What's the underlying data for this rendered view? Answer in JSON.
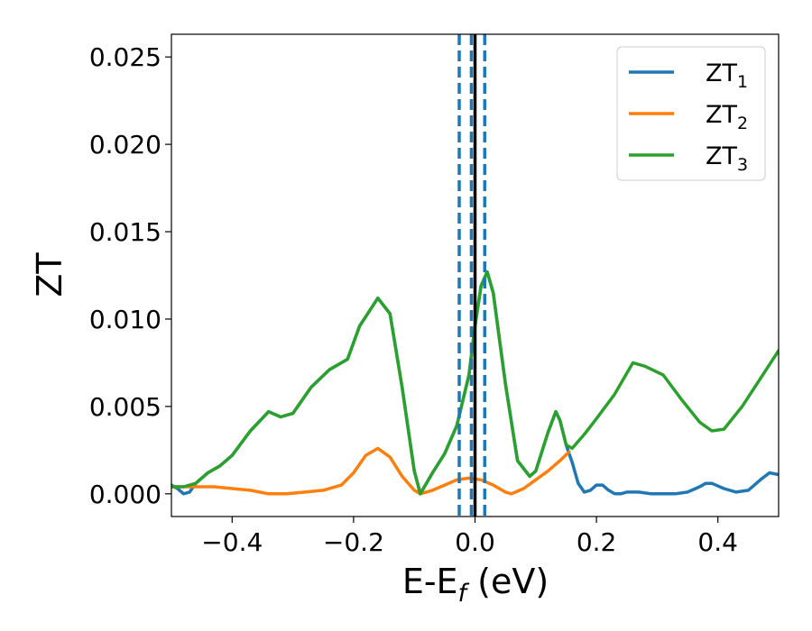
{
  "chart_data": {
    "type": "line",
    "title": "",
    "xlabel": {
      "main": "E-E",
      "sub": "f",
      "unit": " (eV)"
    },
    "ylabel": "ZT",
    "xlim": [
      -0.5,
      0.5
    ],
    "ylim": [
      -0.0013,
      0.0263
    ],
    "xticks": [
      -0.4,
      -0.2,
      0.0,
      0.2,
      0.4
    ],
    "xtick_labels": [
      "−0.4",
      "−0.2",
      "0.0",
      "0.2",
      "0.4"
    ],
    "yticks": [
      0.0,
      0.005,
      0.01,
      0.015,
      0.02,
      0.025
    ],
    "ytick_labels": [
      "0.000",
      "0.005",
      "0.010",
      "0.015",
      "0.020",
      "0.025"
    ],
    "grid": false,
    "legend_position": "top-right",
    "vertical_lines": [
      {
        "x": -0.026,
        "style": "dashed",
        "color": "#1f77b4"
      },
      {
        "x": -0.006,
        "style": "dashed",
        "color": "#1f77b4"
      },
      {
        "x": 0.0,
        "style": "solid",
        "color": "#000000"
      },
      {
        "x": 0.016,
        "style": "dashed",
        "color": "#1f77b4"
      }
    ],
    "series": [
      {
        "name": "ZT",
        "sub": "1",
        "color": "#1f77b4",
        "points": [
          [
            -0.5,
            0.0005
          ],
          [
            -0.49,
            0.0003
          ],
          [
            -0.48,
            0.0
          ],
          [
            -0.47,
            0.0001
          ],
          [
            -0.46,
            0.0006
          ],
          [
            -0.44,
            0.0012
          ],
          [
            -0.42,
            0.0016
          ],
          [
            -0.4,
            0.0022
          ],
          [
            -0.37,
            0.0036
          ],
          [
            -0.34,
            0.0047
          ],
          [
            -0.32,
            0.0044
          ],
          [
            -0.3,
            0.0046
          ],
          [
            -0.27,
            0.0061
          ],
          [
            -0.24,
            0.0071
          ],
          [
            -0.21,
            0.0077
          ],
          [
            -0.19,
            0.0096
          ],
          [
            -0.16,
            0.0112
          ],
          [
            -0.14,
            0.0103
          ],
          [
            -0.12,
            0.0061
          ],
          [
            -0.1,
            0.0013
          ],
          [
            -0.09,
            0.0
          ],
          [
            -0.07,
            0.0012
          ],
          [
            -0.05,
            0.0023
          ],
          [
            -0.03,
            0.0039
          ],
          [
            -0.01,
            0.0068
          ],
          [
            0.0,
            0.0096
          ],
          [
            0.01,
            0.0119
          ],
          [
            0.02,
            0.0127
          ],
          [
            0.03,
            0.0115
          ],
          [
            0.05,
            0.0063
          ],
          [
            0.07,
            0.0019
          ],
          [
            0.09,
            0.001
          ],
          [
            0.1,
            0.0013
          ],
          [
            0.12,
            0.0035
          ],
          [
            0.133,
            0.0047
          ],
          [
            0.14,
            0.0042
          ],
          [
            0.15,
            0.0028
          ],
          [
            0.155,
            0.0023
          ],
          [
            0.16,
            0.0018
          ],
          [
            0.165,
            0.0012
          ],
          [
            0.17,
            0.0006
          ],
          [
            0.18,
            0.0001
          ],
          [
            0.19,
            0.0002
          ],
          [
            0.2,
            0.0005
          ],
          [
            0.21,
            0.0005
          ],
          [
            0.22,
            0.0002
          ],
          [
            0.23,
            0.0
          ],
          [
            0.24,
            0.0
          ],
          [
            0.25,
            0.0001
          ],
          [
            0.27,
            0.0001
          ],
          [
            0.29,
            0.0
          ],
          [
            0.31,
            0.0
          ],
          [
            0.33,
            0.0
          ],
          [
            0.35,
            0.0001
          ],
          [
            0.37,
            0.0004
          ],
          [
            0.38,
            0.0006
          ],
          [
            0.39,
            0.0006
          ],
          [
            0.41,
            0.0003
          ],
          [
            0.43,
            0.0001
          ],
          [
            0.45,
            0.0002
          ],
          [
            0.47,
            0.0008
          ],
          [
            0.485,
            0.0012
          ],
          [
            0.5,
            0.0011
          ]
        ]
      },
      {
        "name": "ZT",
        "sub": "2",
        "color": "#ff7f0e",
        "points": [
          [
            -0.5,
            0.0004
          ],
          [
            -0.47,
            0.0004
          ],
          [
            -0.43,
            0.0004
          ],
          [
            -0.4,
            0.0003
          ],
          [
            -0.37,
            0.0002
          ],
          [
            -0.34,
            0.0
          ],
          [
            -0.31,
            0.0
          ],
          [
            -0.28,
            0.0001
          ],
          [
            -0.25,
            0.0002
          ],
          [
            -0.22,
            0.0005
          ],
          [
            -0.2,
            0.0012
          ],
          [
            -0.18,
            0.0022
          ],
          [
            -0.16,
            0.0026
          ],
          [
            -0.14,
            0.0021
          ],
          [
            -0.12,
            0.001
          ],
          [
            -0.1,
            0.0002
          ],
          [
            -0.09,
            0.0
          ],
          [
            -0.07,
            0.0002
          ],
          [
            -0.05,
            0.0005
          ],
          [
            -0.03,
            0.0008
          ],
          [
            -0.01,
            0.0009
          ],
          [
            0.01,
            0.0008
          ],
          [
            0.03,
            0.0005
          ],
          [
            0.05,
            0.0001
          ],
          [
            0.06,
            0.0
          ],
          [
            0.08,
            0.0003
          ],
          [
            0.1,
            0.0008
          ],
          [
            0.12,
            0.0013
          ],
          [
            0.14,
            0.0019
          ],
          [
            0.155,
            0.0024
          ]
        ]
      },
      {
        "name": "ZT",
        "sub": "3",
        "color": "#2ca02c",
        "points": [
          [
            -0.5,
            0.0004
          ],
          [
            -0.48,
            0.0004
          ],
          [
            -0.46,
            0.0006
          ],
          [
            -0.44,
            0.0012
          ],
          [
            -0.42,
            0.0016
          ],
          [
            -0.4,
            0.0022
          ],
          [
            -0.37,
            0.0036
          ],
          [
            -0.34,
            0.0047
          ],
          [
            -0.32,
            0.0044
          ],
          [
            -0.3,
            0.0046
          ],
          [
            -0.27,
            0.0061
          ],
          [
            -0.24,
            0.0071
          ],
          [
            -0.21,
            0.0077
          ],
          [
            -0.19,
            0.0096
          ],
          [
            -0.16,
            0.0112
          ],
          [
            -0.14,
            0.0103
          ],
          [
            -0.12,
            0.0061
          ],
          [
            -0.1,
            0.0013
          ],
          [
            -0.09,
            0.0
          ],
          [
            -0.07,
            0.0012
          ],
          [
            -0.05,
            0.0023
          ],
          [
            -0.03,
            0.0039
          ],
          [
            -0.01,
            0.0068
          ],
          [
            0.0,
            0.0096
          ],
          [
            0.01,
            0.0119
          ],
          [
            0.02,
            0.0127
          ],
          [
            0.03,
            0.0115
          ],
          [
            0.05,
            0.0063
          ],
          [
            0.07,
            0.0019
          ],
          [
            0.09,
            0.001
          ],
          [
            0.1,
            0.0013
          ],
          [
            0.12,
            0.0035
          ],
          [
            0.133,
            0.0047
          ],
          [
            0.14,
            0.0042
          ],
          [
            0.15,
            0.0028
          ],
          [
            0.16,
            0.0026
          ],
          [
            0.18,
            0.0034
          ],
          [
            0.2,
            0.0043
          ],
          [
            0.23,
            0.0057
          ],
          [
            0.26,
            0.0075
          ],
          [
            0.28,
            0.0073
          ],
          [
            0.31,
            0.0068
          ],
          [
            0.34,
            0.0054
          ],
          [
            0.37,
            0.0041
          ],
          [
            0.39,
            0.0036
          ],
          [
            0.41,
            0.0037
          ],
          [
            0.44,
            0.005
          ],
          [
            0.47,
            0.0066
          ],
          [
            0.5,
            0.0082
          ]
        ]
      }
    ]
  }
}
